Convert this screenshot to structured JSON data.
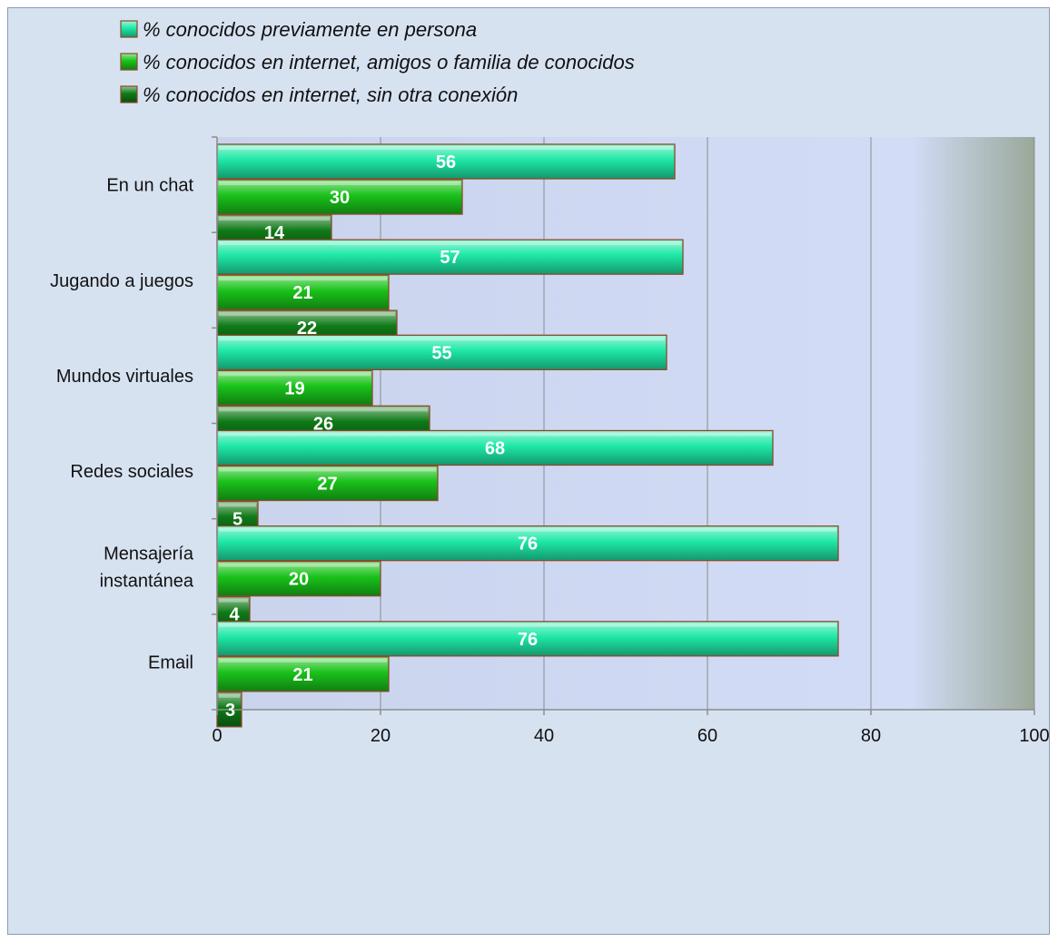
{
  "chart_data": {
    "type": "bar",
    "orientation": "horizontal",
    "categories": [
      "En un chat",
      "Jugando a juegos",
      "Mundos virtuales",
      "Redes sociales",
      "Mensajería instantánea",
      "Email"
    ],
    "category_lines": [
      [
        "En un chat"
      ],
      [
        "Jugando a juegos"
      ],
      [
        "Mundos virtuales"
      ],
      [
        "Redes sociales"
      ],
      [
        "Mensajería",
        "instantánea"
      ],
      [
        "Email"
      ]
    ],
    "series": [
      {
        "name": "% conocidos previamente en persona",
        "values": [
          56,
          57,
          55,
          68,
          76,
          76
        ],
        "color": "#1ee8a6"
      },
      {
        "name": "% conocidos en internet, amigos o familia de conocidos",
        "values": [
          30,
          21,
          19,
          27,
          20,
          21
        ],
        "color": "#19c21a"
      },
      {
        "name": "% conocidos en internet, sin otra conexión",
        "values": [
          14,
          22,
          26,
          5,
          4,
          3
        ],
        "color": "#0f7a17"
      }
    ],
    "xlim": [
      0,
      100
    ],
    "xticks": [
      0,
      20,
      40,
      60,
      80,
      100
    ],
    "grid": true,
    "legend_position": "top",
    "data_labels": true,
    "title": "",
    "xlabel": "",
    "ylabel": ""
  }
}
